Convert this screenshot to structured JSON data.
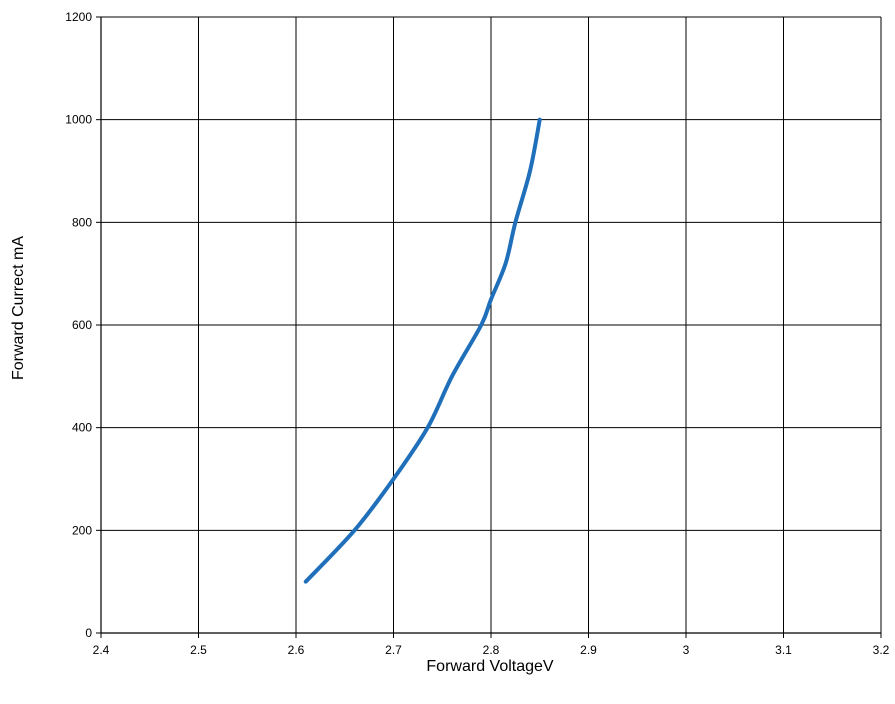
{
  "chart_data": {
    "type": "line",
    "xlabel": "Forward VoltageV",
    "ylabel": "Forward Currect mA",
    "xlim": [
      2.4,
      3.2
    ],
    "ylim": [
      0,
      1200
    ],
    "x_ticks": [
      "2.4",
      "2.5",
      "2.6",
      "2.7",
      "2.8",
      "2.9",
      "3",
      "3.1",
      "3.2"
    ],
    "y_ticks": [
      "0",
      "200",
      "400",
      "600",
      "800",
      "1000",
      "1200"
    ],
    "grid": true,
    "legend": "none",
    "series": [
      {
        "color": "#1f6fba",
        "x": [
          2.61,
          2.66,
          2.7,
          2.735,
          2.76,
          2.79,
          2.8,
          2.815,
          2.825,
          2.84,
          2.85
        ],
        "y": [
          100,
          200,
          300,
          400,
          500,
          600,
          650,
          720,
          800,
          900,
          1000
        ]
      }
    ]
  }
}
